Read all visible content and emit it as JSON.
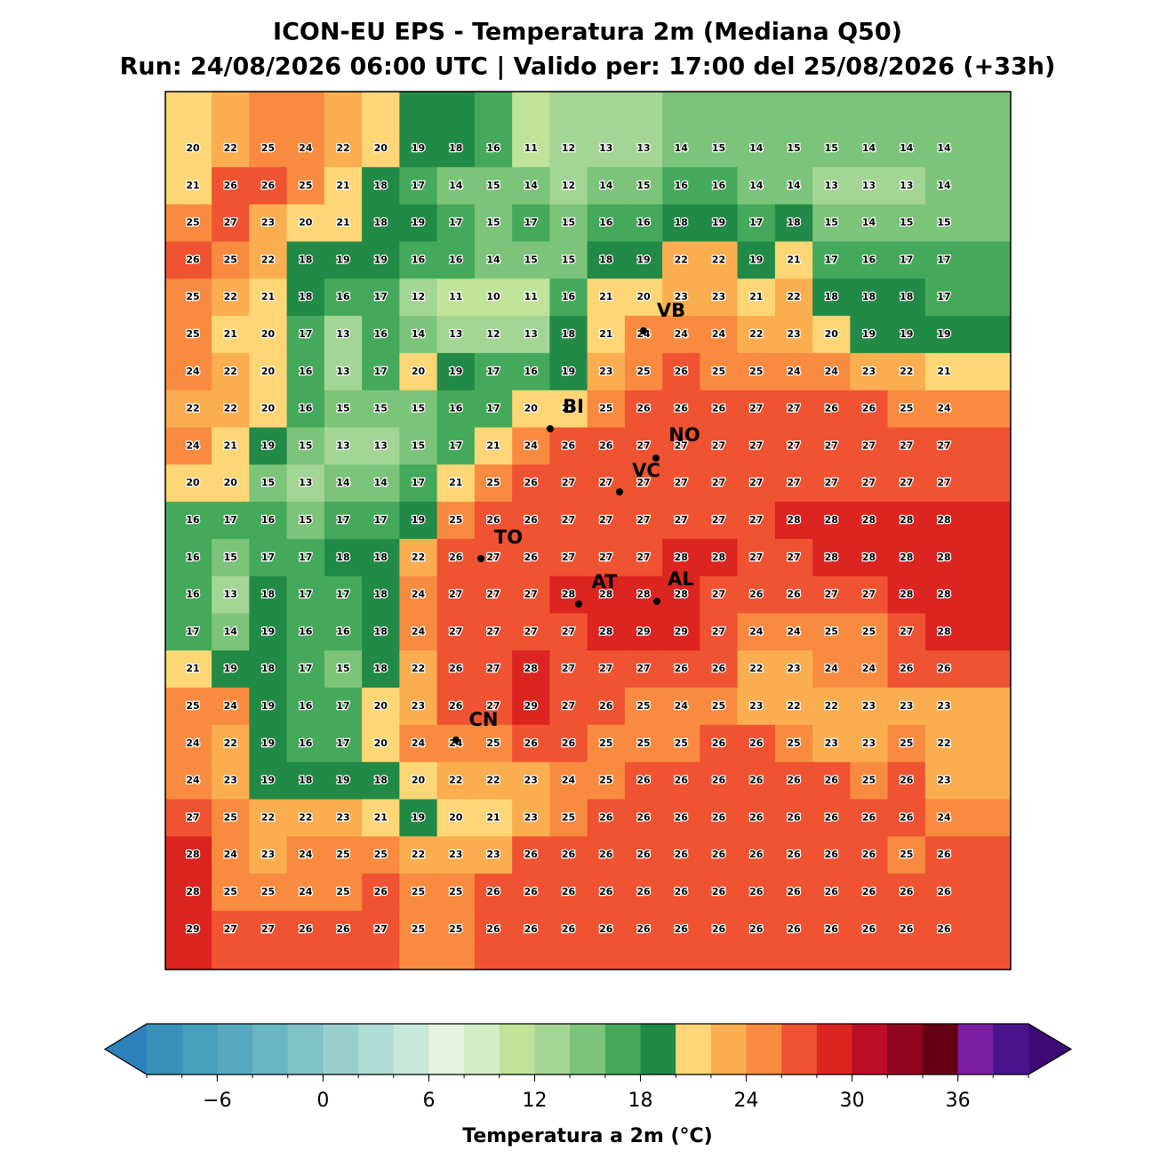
{
  "header": {
    "title": "ICON-EU EPS - Temperatura 2m (Mediana Q50)",
    "subtitle": "Run: 24/08/2026 06:00 UTC | Valido per: 17:00 del 25/08/2026 (+33h)"
  },
  "map": {
    "values": [
      [
        20,
        22,
        25,
        24,
        22,
        20,
        19,
        18,
        16,
        11,
        12,
        13,
        13,
        14,
        15,
        14,
        15,
        15,
        14,
        14,
        14
      ],
      [
        21,
        26,
        26,
        25,
        21,
        18,
        17,
        14,
        15,
        14,
        12,
        14,
        15,
        16,
        16,
        14,
        14,
        13,
        13,
        13,
        14
      ],
      [
        25,
        27,
        23,
        20,
        21,
        18,
        19,
        17,
        15,
        17,
        15,
        16,
        16,
        18,
        19,
        17,
        18,
        15,
        14,
        15,
        15
      ],
      [
        26,
        25,
        22,
        18,
        19,
        19,
        16,
        16,
        14,
        15,
        15,
        18,
        19,
        22,
        22,
        19,
        21,
        17,
        16,
        17,
        17
      ],
      [
        25,
        22,
        21,
        18,
        16,
        17,
        12,
        11,
        10,
        11,
        16,
        21,
        20,
        23,
        23,
        21,
        22,
        18,
        18,
        18,
        17
      ],
      [
        25,
        21,
        20,
        17,
        13,
        16,
        14,
        13,
        12,
        13,
        18,
        21,
        24,
        24,
        24,
        22,
        23,
        20,
        19,
        19,
        19
      ],
      [
        24,
        22,
        20,
        16,
        13,
        17,
        20,
        19,
        17,
        16,
        19,
        23,
        25,
        26,
        25,
        25,
        24,
        24,
        23,
        22,
        21
      ],
      [
        22,
        22,
        20,
        16,
        15,
        15,
        15,
        16,
        17,
        20,
        21,
        25,
        26,
        26,
        26,
        27,
        27,
        26,
        26,
        25,
        24
      ],
      [
        24,
        21,
        19,
        15,
        13,
        13,
        15,
        17,
        21,
        24,
        26,
        26,
        27,
        27,
        27,
        27,
        27,
        27,
        27,
        27,
        27
      ],
      [
        20,
        20,
        15,
        13,
        14,
        14,
        17,
        21,
        25,
        26,
        27,
        27,
        27,
        27,
        27,
        27,
        27,
        27,
        27,
        27,
        27
      ],
      [
        16,
        17,
        16,
        15,
        17,
        17,
        19,
        25,
        26,
        26,
        27,
        27,
        27,
        27,
        27,
        27,
        28,
        28,
        28,
        28,
        28
      ],
      [
        16,
        15,
        17,
        17,
        18,
        18,
        22,
        26,
        27,
        26,
        27,
        27,
        27,
        28,
        28,
        27,
        27,
        28,
        28,
        28,
        28
      ],
      [
        16,
        13,
        18,
        17,
        17,
        18,
        24,
        27,
        27,
        27,
        28,
        28,
        28,
        28,
        27,
        26,
        26,
        27,
        27,
        28,
        28
      ],
      [
        17,
        14,
        19,
        16,
        16,
        18,
        24,
        27,
        27,
        27,
        27,
        28,
        29,
        29,
        27,
        24,
        24,
        25,
        25,
        27,
        28
      ],
      [
        21,
        19,
        18,
        17,
        15,
        18,
        22,
        26,
        27,
        28,
        27,
        27,
        27,
        26,
        26,
        22,
        23,
        24,
        24,
        26,
        26
      ],
      [
        25,
        24,
        19,
        16,
        17,
        20,
        23,
        26,
        27,
        29,
        27,
        26,
        25,
        24,
        25,
        23,
        22,
        22,
        23,
        23,
        23
      ],
      [
        24,
        22,
        19,
        16,
        17,
        20,
        24,
        24,
        25,
        26,
        26,
        25,
        25,
        25,
        26,
        26,
        25,
        23,
        23,
        25,
        22
      ],
      [
        24,
        23,
        19,
        18,
        19,
        18,
        20,
        22,
        22,
        23,
        24,
        25,
        26,
        26,
        26,
        26,
        26,
        26,
        25,
        26,
        23
      ],
      [
        27,
        25,
        22,
        22,
        23,
        21,
        19,
        20,
        21,
        23,
        25,
        26,
        26,
        26,
        26,
        26,
        26,
        26,
        26,
        26,
        24
      ],
      [
        28,
        24,
        23,
        24,
        25,
        25,
        22,
        23,
        23,
        26,
        26,
        26,
        26,
        26,
        26,
        26,
        26,
        26,
        26,
        25,
        26
      ],
      [
        28,
        25,
        25,
        24,
        25,
        26,
        25,
        25,
        26,
        26,
        26,
        26,
        26,
        26,
        26,
        26,
        26,
        26,
        26,
        26,
        26
      ],
      [
        29,
        27,
        27,
        26,
        26,
        27,
        25,
        25,
        26,
        26,
        26,
        26,
        26,
        26,
        26,
        26,
        26,
        26,
        26,
        26,
        26
      ]
    ],
    "cities": [
      "VB",
      "BI",
      "NO",
      "VC",
      "TO",
      "AT",
      "AL",
      "CN"
    ]
  },
  "colorbar": {
    "range": [
      -10,
      40
    ],
    "ticks": [
      {
        "value": -6,
        "label": "−6"
      },
      0,
      6,
      12,
      18,
      24,
      30,
      36
    ],
    "colors": [
      "#3990b8",
      "#46a0bb",
      "#55aac0",
      "#69b5c2",
      "#80c2c6",
      "#98cfcc",
      "#b0ddd4",
      "#c9e8dc",
      "#e4f4df",
      "#d3edc6",
      "#bfe399",
      "#a3d594",
      "#7cc47a",
      "#45a95b",
      "#228a47",
      "#fed675",
      "#fbae4f",
      "#f88b3f",
      "#ef5332",
      "#dc2420",
      "#bb0d26",
      "#92051f",
      "#640013",
      "#7b1fa2",
      "#4a148c"
    ],
    "under_color": "#2c80bc",
    "over_color": "#3d0a75",
    "label": "Temperatura a 2m (°C)"
  }
}
